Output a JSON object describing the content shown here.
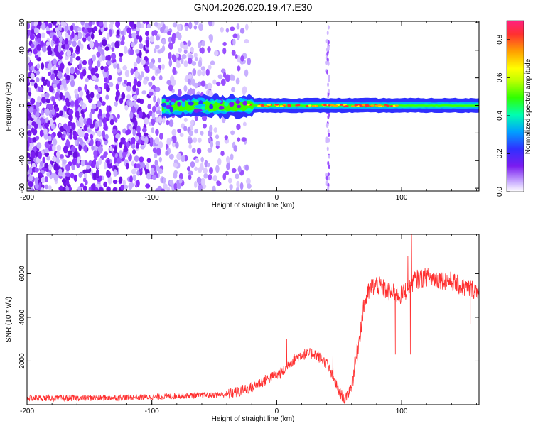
{
  "title": "GN04.2026.020.19.47.E30",
  "chart_data": [
    {
      "type": "heatmap",
      "xlabel": "Height of straight line (km)",
      "ylabel": "Frequency (Hz)",
      "xlim": [
        -200,
        162
      ],
      "ylim": [
        -62,
        61
      ],
      "x_ticks": [
        "-200",
        "-100",
        "0",
        "100"
      ],
      "y_ticks": [
        "60",
        "40",
        "20",
        "0",
        "-20",
        "-40",
        "-60"
      ],
      "colorbar": {
        "label": "Normalized spectral amplitude",
        "range": [
          0.0,
          0.9
        ],
        "ticks": [
          "0.0",
          "0.2",
          "0.4",
          "0.6",
          "0.8"
        ],
        "colormap": [
          "#ffffff",
          "#b090ff",
          "#7a1cf0",
          "#3030ff",
          "#00c0ff",
          "#00ffa0",
          "#40ff00",
          "#ffff00",
          "#ffa000",
          "#ff3030",
          "#ff2080"
        ]
      },
      "features": {
        "scatter_region_km": [
          -200,
          -22
        ],
        "vertical_stripe_km": 41,
        "band_start_km": -92,
        "band_peak_width_hz": 4
      }
    },
    {
      "type": "line",
      "xlabel": "Height of straight line (km)",
      "ylabel": "SNR (10 * v/v)",
      "xlim": [
        -200,
        162
      ],
      "ylim": [
        0,
        7800
      ],
      "x_ticks": [
        "-200",
        "-100",
        "0",
        "100"
      ],
      "y_ticks": [
        "2000",
        "4000",
        "6000"
      ],
      "color": "#ff3030",
      "series": [
        {
          "x": [
            -200,
            -150,
            -100,
            -70,
            -50,
            -40,
            -30,
            -20,
            -10,
            0,
            5,
            10,
            20,
            30,
            40,
            50,
            55,
            60,
            65,
            70,
            75,
            80,
            90,
            100,
            110,
            120,
            130,
            140,
            150,
            160,
            162
          ],
          "values": [
            300,
            300,
            350,
            420,
            450,
            470,
            600,
            800,
            1100,
            1350,
            1500,
            1900,
            2300,
            2350,
            1900,
            600,
            200,
            900,
            2600,
            4600,
            5350,
            5500,
            5150,
            5000,
            5700,
            5850,
            5750,
            5650,
            5350,
            5250,
            5300
          ]
        }
      ],
      "spikes": [
        {
          "x": 8,
          "value": 3000
        },
        {
          "x": 45,
          "value": 2300
        },
        {
          "x": 95,
          "value": 2300
        },
        {
          "x": 105,
          "value": 6800
        },
        {
          "x": 107,
          "value": 2300
        },
        {
          "x": 108,
          "value": 7800
        },
        {
          "x": 155,
          "value": 3700
        }
      ]
    }
  ]
}
